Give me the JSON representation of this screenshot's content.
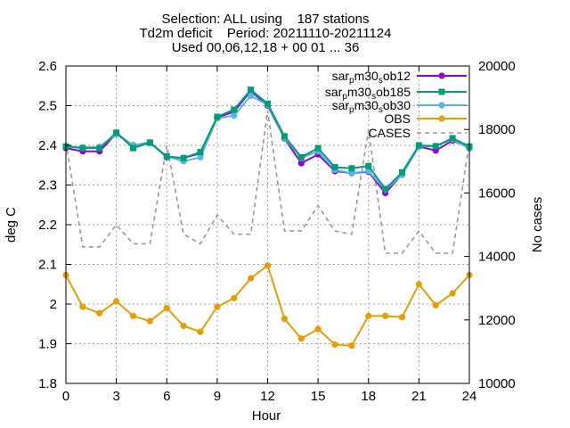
{
  "chart_data": {
    "type": "line",
    "title_lines": [
      "Selection: ALL using    187 stations",
      "Td2m deficit    Period: 20211110-20211124",
      "Used 00,06,12,18 + 00 01 ... 36"
    ],
    "xlabel": "Hour",
    "ylabel": "deg C",
    "y2label": "No cases",
    "xlim": [
      0,
      24
    ],
    "ylim": [
      1.8,
      2.6
    ],
    "y2lim": [
      10000,
      20000
    ],
    "xticks": [
      "0",
      "3",
      "6",
      "9",
      "12",
      "15",
      "18",
      "21",
      "24"
    ],
    "yticks": [
      "1.8",
      "1.9",
      "2",
      "2.1",
      "2.2",
      "2.3",
      "2.4",
      "2.5",
      "2.6"
    ],
    "y2ticks": [
      "10000",
      "12000",
      "14000",
      "16000",
      "18000",
      "20000"
    ],
    "grid": true,
    "legend_position": "top-right",
    "x": [
      0,
      1,
      2,
      3,
      4,
      5,
      6,
      7,
      8,
      9,
      10,
      11,
      12,
      13,
      14,
      15,
      16,
      17,
      18,
      19,
      20,
      21,
      22,
      23,
      24
    ],
    "series": [
      {
        "name_parts": [
          "sar",
          "p",
          "m30",
          "s",
          "ob12"
        ],
        "color": "#9400d3",
        "marker": "circle",
        "axis": "y1",
        "values": [
          2.393,
          2.385,
          2.385,
          2.43,
          2.4,
          2.407,
          2.37,
          2.368,
          2.38,
          2.47,
          2.485,
          2.537,
          2.5,
          2.417,
          2.355,
          2.377,
          2.335,
          2.33,
          2.333,
          2.28,
          2.327,
          2.397,
          2.387,
          2.412,
          2.395
        ]
      },
      {
        "name_parts": [
          "sar",
          "p",
          "m30",
          "s",
          "ob185"
        ],
        "color": "#009e73",
        "marker": "square",
        "axis": "y1",
        "values": [
          2.397,
          2.393,
          2.393,
          2.432,
          2.393,
          2.407,
          2.372,
          2.368,
          2.383,
          2.472,
          2.49,
          2.54,
          2.505,
          2.423,
          2.37,
          2.393,
          2.345,
          2.342,
          2.348,
          2.29,
          2.332,
          2.4,
          2.398,
          2.418,
          2.397
        ]
      },
      {
        "name_parts": [
          "sar",
          "p",
          "m30",
          "s",
          "ob30"
        ],
        "color": "#56b4e9",
        "marker": "circle",
        "axis": "y1",
        "values": [
          2.397,
          2.395,
          2.396,
          2.428,
          2.401,
          2.405,
          2.372,
          2.36,
          2.37,
          2.468,
          2.475,
          2.525,
          2.502,
          2.418,
          2.368,
          2.385,
          2.338,
          2.33,
          2.335,
          2.288,
          2.325,
          2.397,
          2.398,
          2.415,
          2.392
        ]
      },
      {
        "name": "OBS",
        "color": "#e69f00",
        "marker": "circle",
        "axis": "y1",
        "values": [
          2.073,
          1.993,
          1.977,
          2.007,
          1.97,
          1.957,
          1.99,
          1.945,
          1.93,
          1.993,
          2.015,
          2.065,
          2.097,
          1.963,
          1.913,
          1.937,
          1.898,
          1.895,
          1.97,
          1.97,
          1.967,
          2.05,
          1.997,
          2.027,
          2.073
        ]
      },
      {
        "name": "CASES",
        "color": "#999999",
        "dashed": true,
        "axis": "y2",
        "values": [
          17600,
          14300,
          14300,
          15000,
          14400,
          14400,
          17500,
          14700,
          14400,
          15300,
          14700,
          14700,
          18600,
          14800,
          14800,
          15600,
          14800,
          14700,
          18000,
          14100,
          14100,
          14800,
          14100,
          14100,
          17600
        ]
      }
    ]
  }
}
